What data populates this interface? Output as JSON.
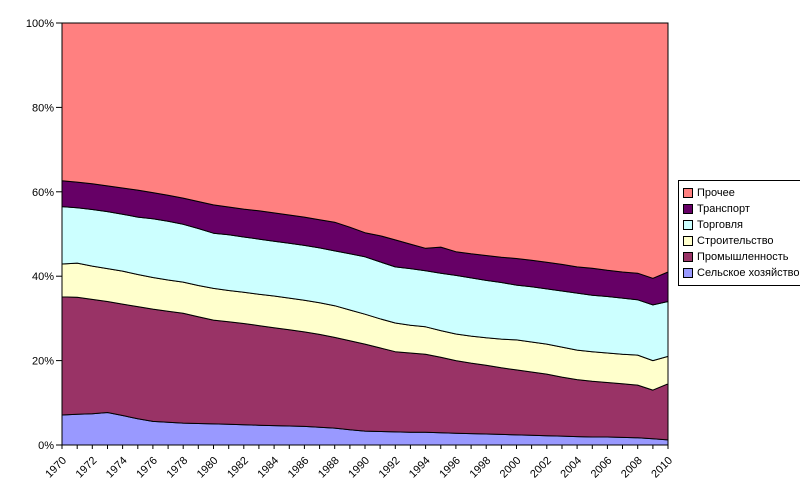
{
  "chart_data": {
    "type": "area",
    "stacked": true,
    "percent_stacked": true,
    "title": "",
    "xlabel": "",
    "ylabel": "",
    "ylim": [
      0,
      100
    ],
    "grid": false,
    "legend_position": "right",
    "y_ticks": [
      "0%",
      "20%",
      "40%",
      "60%",
      "80%",
      "100%"
    ],
    "x": [
      1970,
      1971,
      1972,
      1973,
      1974,
      1975,
      1976,
      1977,
      1978,
      1979,
      1980,
      1981,
      1982,
      1983,
      1984,
      1985,
      1986,
      1987,
      1988,
      1989,
      1990,
      1991,
      1992,
      1993,
      1994,
      1995,
      1996,
      1997,
      1998,
      1999,
      2000,
      2001,
      2002,
      2003,
      2004,
      2005,
      2006,
      2007,
      2008,
      2009,
      2010
    ],
    "x_labeled_years": [
      1970,
      1972,
      1974,
      1976,
      1978,
      1980,
      1982,
      1984,
      1986,
      1988,
      1990,
      1992,
      1994,
      1996,
      1998,
      2000,
      2002,
      2004,
      2006,
      2008,
      2010
    ],
    "series": [
      {
        "key": "agriculture",
        "name": "Сельское хозяйство",
        "color": "#9999FF",
        "values": [
          7.1,
          7.3,
          7.4,
          7.7,
          7.0,
          6.2,
          5.6,
          5.4,
          5.2,
          5.1,
          5.0,
          4.9,
          4.8,
          4.7,
          4.6,
          4.5,
          4.4,
          4.2,
          4.0,
          3.6,
          3.3,
          3.2,
          3.1,
          3.0,
          3.0,
          2.9,
          2.8,
          2.7,
          2.6,
          2.5,
          2.4,
          2.3,
          2.2,
          2.1,
          2.0,
          1.9,
          1.9,
          1.8,
          1.7,
          1.5,
          1.2
        ]
      },
      {
        "key": "industry",
        "name": "Промышленность",
        "color": "#993366",
        "values": [
          28.0,
          27.7,
          27.1,
          26.3,
          26.4,
          26.6,
          26.6,
          26.3,
          26.0,
          25.3,
          24.6,
          24.3,
          24.0,
          23.6,
          23.2,
          22.8,
          22.4,
          22.0,
          21.5,
          21.1,
          20.6,
          19.8,
          19.0,
          18.8,
          18.5,
          17.9,
          17.2,
          16.7,
          16.3,
          15.8,
          15.4,
          15.0,
          14.6,
          14.0,
          13.5,
          13.2,
          12.9,
          12.7,
          12.5,
          11.5,
          13.3
        ]
      },
      {
        "key": "construction",
        "name": "Строительство",
        "color": "#FFFFCC",
        "values": [
          7.8,
          8.1,
          7.9,
          7.8,
          7.8,
          7.6,
          7.5,
          7.4,
          7.4,
          7.4,
          7.5,
          7.4,
          7.4,
          7.4,
          7.5,
          7.5,
          7.5,
          7.5,
          7.5,
          7.3,
          7.1,
          6.9,
          6.8,
          6.6,
          6.5,
          6.3,
          6.3,
          6.4,
          6.5,
          6.8,
          7.1,
          7.1,
          7.1,
          7.1,
          7.0,
          7.0,
          7.0,
          7.0,
          7.1,
          7.0,
          6.5
        ]
      },
      {
        "key": "trade",
        "name": "Торговля",
        "color": "#CCFFFF",
        "values": [
          13.6,
          13.1,
          13.4,
          13.5,
          13.5,
          13.6,
          13.9,
          13.9,
          13.7,
          13.5,
          13.1,
          13.2,
          13.1,
          13.1,
          13.0,
          13.0,
          13.0,
          13.0,
          13.0,
          13.3,
          13.6,
          13.5,
          13.3,
          13.4,
          13.3,
          13.6,
          13.9,
          13.8,
          13.6,
          13.4,
          13.0,
          13.1,
          13.1,
          13.3,
          13.5,
          13.4,
          13.4,
          13.3,
          13.1,
          13.2,
          13.0
        ]
      },
      {
        "key": "transport",
        "name": "Транспорт",
        "color": "#660066",
        "values": [
          6.1,
          6.1,
          6.1,
          6.1,
          6.2,
          6.4,
          6.2,
          6.2,
          6.2,
          6.4,
          6.7,
          6.6,
          6.6,
          6.7,
          6.7,
          6.7,
          6.7,
          6.7,
          6.8,
          6.3,
          5.7,
          6.2,
          6.4,
          5.8,
          5.3,
          6.2,
          5.6,
          5.7,
          5.9,
          6.0,
          6.3,
          6.3,
          6.3,
          6.3,
          6.2,
          6.4,
          6.2,
          6.2,
          6.3,
          6.3,
          7.0
        ]
      },
      {
        "key": "other",
        "name": "Прочее",
        "color": "#FF8080",
        "values": [
          37.4,
          37.7,
          38.1,
          38.6,
          39.1,
          39.6,
          40.2,
          40.8,
          41.5,
          42.3,
          43.1,
          43.6,
          44.1,
          44.5,
          45.0,
          45.5,
          46.0,
          46.6,
          47.2,
          48.4,
          49.7,
          50.4,
          51.4,
          52.4,
          53.4,
          53.1,
          54.2,
          54.7,
          55.1,
          55.5,
          55.8,
          56.2,
          56.7,
          57.2,
          57.8,
          58.1,
          58.6,
          59.0,
          59.3,
          60.5,
          59.0
        ]
      }
    ]
  },
  "legend": {
    "items": [
      {
        "label": "Прочее",
        "color": "#FF8080"
      },
      {
        "label": "Транспорт",
        "color": "#660066"
      },
      {
        "label": "Торговля",
        "color": "#CCFFFF"
      },
      {
        "label": "Строительство",
        "color": "#FFFFCC"
      },
      {
        "label": "Промышленность",
        "color": "#993366"
      },
      {
        "label": "Сельское хозяйство",
        "color": "#9999FF"
      }
    ]
  },
  "colors": {
    "axis": "#000000",
    "plot_border": "#000000",
    "background": "#FFFFFF",
    "tick_text": "#000000"
  }
}
